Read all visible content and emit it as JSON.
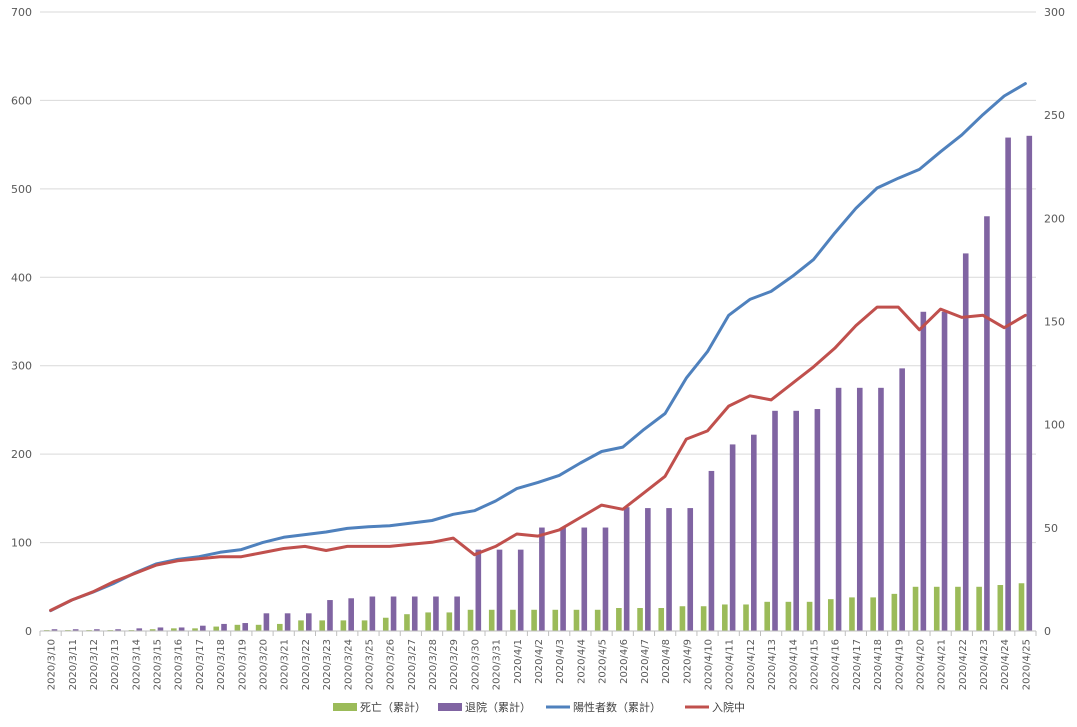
{
  "chart_data": {
    "type": "bar+line",
    "categories": [
      "2020/3/10",
      "2020/3/11",
      "2020/3/12",
      "2020/3/13",
      "2020/3/14",
      "2020/3/15",
      "2020/3/16",
      "2020/3/17",
      "2020/3/18",
      "2020/3/19",
      "2020/3/20",
      "2020/3/21",
      "2020/3/22",
      "2020/3/23",
      "2020/3/24",
      "2020/3/25",
      "2020/3/26",
      "2020/3/27",
      "2020/3/28",
      "2020/3/29",
      "2020/3/30",
      "2020/3/31",
      "2020/4/1",
      "2020/4/2",
      "2020/4/3",
      "2020/4/4",
      "2020/4/5",
      "2020/4/6",
      "2020/4/7",
      "2020/4/8",
      "2020/4/9",
      "2020/4/10",
      "2020/4/11",
      "2020/4/12",
      "2020/4/13",
      "2020/4/14",
      "2020/4/15",
      "2020/4/16",
      "2020/4/17",
      "2020/4/18",
      "2020/4/19",
      "2020/4/20",
      "2020/4/21",
      "2020/4/22",
      "2020/4/23",
      "2020/4/24",
      "2020/4/25"
    ],
    "left_axis": {
      "ylim": [
        0,
        700
      ],
      "ticks": [
        0,
        100,
        200,
        300,
        400,
        500,
        600,
        700
      ]
    },
    "right_axis": {
      "ylim": [
        0,
        300
      ],
      "ticks": [
        0,
        50,
        100,
        150,
        200,
        250,
        300
      ]
    },
    "grid": true,
    "legend_position": "bottom",
    "series": [
      {
        "name": "死亡（累計）",
        "type": "bar",
        "axis": "left",
        "color": "#9bbb59",
        "values": [
          1,
          1,
          1,
          1,
          1,
          2,
          3,
          3,
          5,
          7,
          7,
          8,
          12,
          12,
          12,
          12,
          15,
          19,
          21,
          21,
          24,
          24,
          24,
          24,
          24,
          24,
          24,
          26,
          26,
          26,
          28,
          28,
          30,
          30,
          33,
          33,
          33,
          36,
          38,
          38,
          42,
          50,
          50,
          50,
          50,
          52,
          54
        ]
      },
      {
        "name": "退院（累計）",
        "type": "bar",
        "axis": "left",
        "color": "#8064a2",
        "values": [
          2,
          2,
          2,
          2,
          3,
          4,
          4,
          6,
          8,
          9,
          20,
          20,
          20,
          35,
          37,
          39,
          39,
          39,
          39,
          39,
          92,
          92,
          92,
          117,
          117,
          117,
          117,
          140,
          139,
          139,
          139,
          181,
          211,
          222,
          249,
          249,
          251,
          275,
          275,
          275,
          297,
          361,
          361,
          427,
          469,
          558,
          560
        ]
      },
      {
        "name": "陽性者数（累計）",
        "type": "line",
        "axis": "left",
        "color": "#4f81bd",
        "values": [
          23,
          35,
          44,
          54,
          66,
          76,
          81,
          84,
          89,
          92,
          100,
          106,
          109,
          112,
          116,
          118,
          119,
          122,
          125,
          132,
          136,
          147,
          161,
          168,
          176,
          190,
          203,
          208,
          228,
          246,
          286,
          316,
          357,
          375,
          384,
          401,
          420,
          450,
          478,
          501,
          512,
          522,
          542,
          561,
          584,
          605,
          619
        ]
      },
      {
        "name": "入院中",
        "type": "line",
        "axis": "right",
        "color": "#c0504d",
        "values": [
          10,
          15,
          19,
          24,
          28,
          32,
          34,
          35,
          36,
          36,
          38,
          40,
          41,
          39,
          41,
          41,
          41,
          42,
          43,
          45,
          37,
          41,
          47,
          46,
          49,
          55,
          61,
          59,
          67,
          75,
          93,
          97,
          109,
          114,
          112,
          120,
          128,
          137,
          148,
          157,
          157,
          146,
          156,
          152,
          153,
          147,
          153
        ]
      }
    ]
  }
}
